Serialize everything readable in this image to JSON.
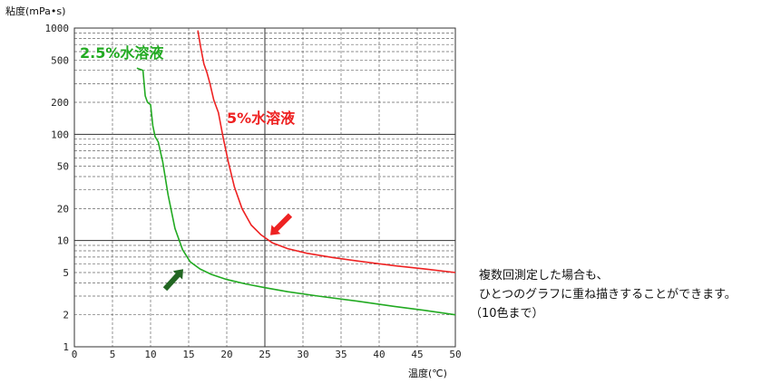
{
  "chart_data": {
    "type": "line",
    "ylabel": "粘度(mPa•s)",
    "xlabel": "温度(℃)",
    "x_ticks": [
      "0",
      "5",
      "10",
      "15",
      "20",
      "25",
      "30",
      "35",
      "40",
      "45",
      "50"
    ],
    "y_ticks": [
      {
        "value": 1000,
        "label": "1000"
      },
      {
        "value": 500,
        "label": "500"
      },
      {
        "value": 200,
        "label": "200"
      },
      {
        "value": 100,
        "label": "100"
      },
      {
        "value": 50,
        "label": "50"
      },
      {
        "value": 20,
        "label": "20"
      },
      {
        "value": 10,
        "label": "10"
      },
      {
        "value": 5,
        "label": "5"
      },
      {
        "value": 2,
        "label": "2"
      },
      {
        "value": 1,
        "label": "1"
      }
    ],
    "xlim": [
      0,
      50
    ],
    "ylim": [
      1,
      1000
    ],
    "y_scale": "log",
    "grid": true,
    "series": [
      {
        "name": "2.5%水溶液",
        "color": "#22aa22",
        "x": [
          8.2,
          9.0,
          9.3,
          9.6,
          10.0,
          10.3,
          10.6,
          11.0,
          11.6,
          12.3,
          13.2,
          14.2,
          15.2,
          16.5,
          18.0,
          20.0,
          22.5,
          25.0,
          28.0,
          32.0,
          37.0,
          42.0,
          46.0,
          50.0
        ],
        "y": [
          420,
          400,
          230,
          200,
          190,
          120,
          95,
          85,
          55,
          27,
          13,
          8.2,
          6.3,
          5.4,
          4.8,
          4.3,
          3.9,
          3.6,
          3.3,
          3.0,
          2.7,
          2.4,
          2.2,
          2.0
        ]
      },
      {
        "name": "5%水溶液",
        "color": "#ee2222",
        "x": [
          16.2,
          16.6,
          17.0,
          17.4,
          17.8,
          18.3,
          18.9,
          19.5,
          20.2,
          21.0,
          22.0,
          23.2,
          24.5,
          26.0,
          28.0,
          30.5,
          34.0,
          38.0,
          42.0,
          46.0,
          50.0
        ],
        "y": [
          950,
          650,
          460,
          380,
          300,
          210,
          160,
          95,
          55,
          32,
          20,
          14,
          11.3,
          9.5,
          8.4,
          7.6,
          6.9,
          6.3,
          5.8,
          5.4,
          5.0
        ]
      }
    ],
    "series_labels": [
      {
        "text": "2.5%水溶液",
        "color": "#22aa22"
      },
      {
        "text": "5%水溶液",
        "color": "#ee2222"
      }
    ],
    "arrows": [
      {
        "color": "#ee2222",
        "target_x": 25,
        "target_y": 10
      },
      {
        "color": "#226622",
        "target_x": 15,
        "target_y": 6.3
      }
    ]
  },
  "note": {
    "line1": "複数回測定した場合も、",
    "line2": "ひとつのグラフに重ね描きすることができます。",
    "line3": "（10色まで）"
  }
}
